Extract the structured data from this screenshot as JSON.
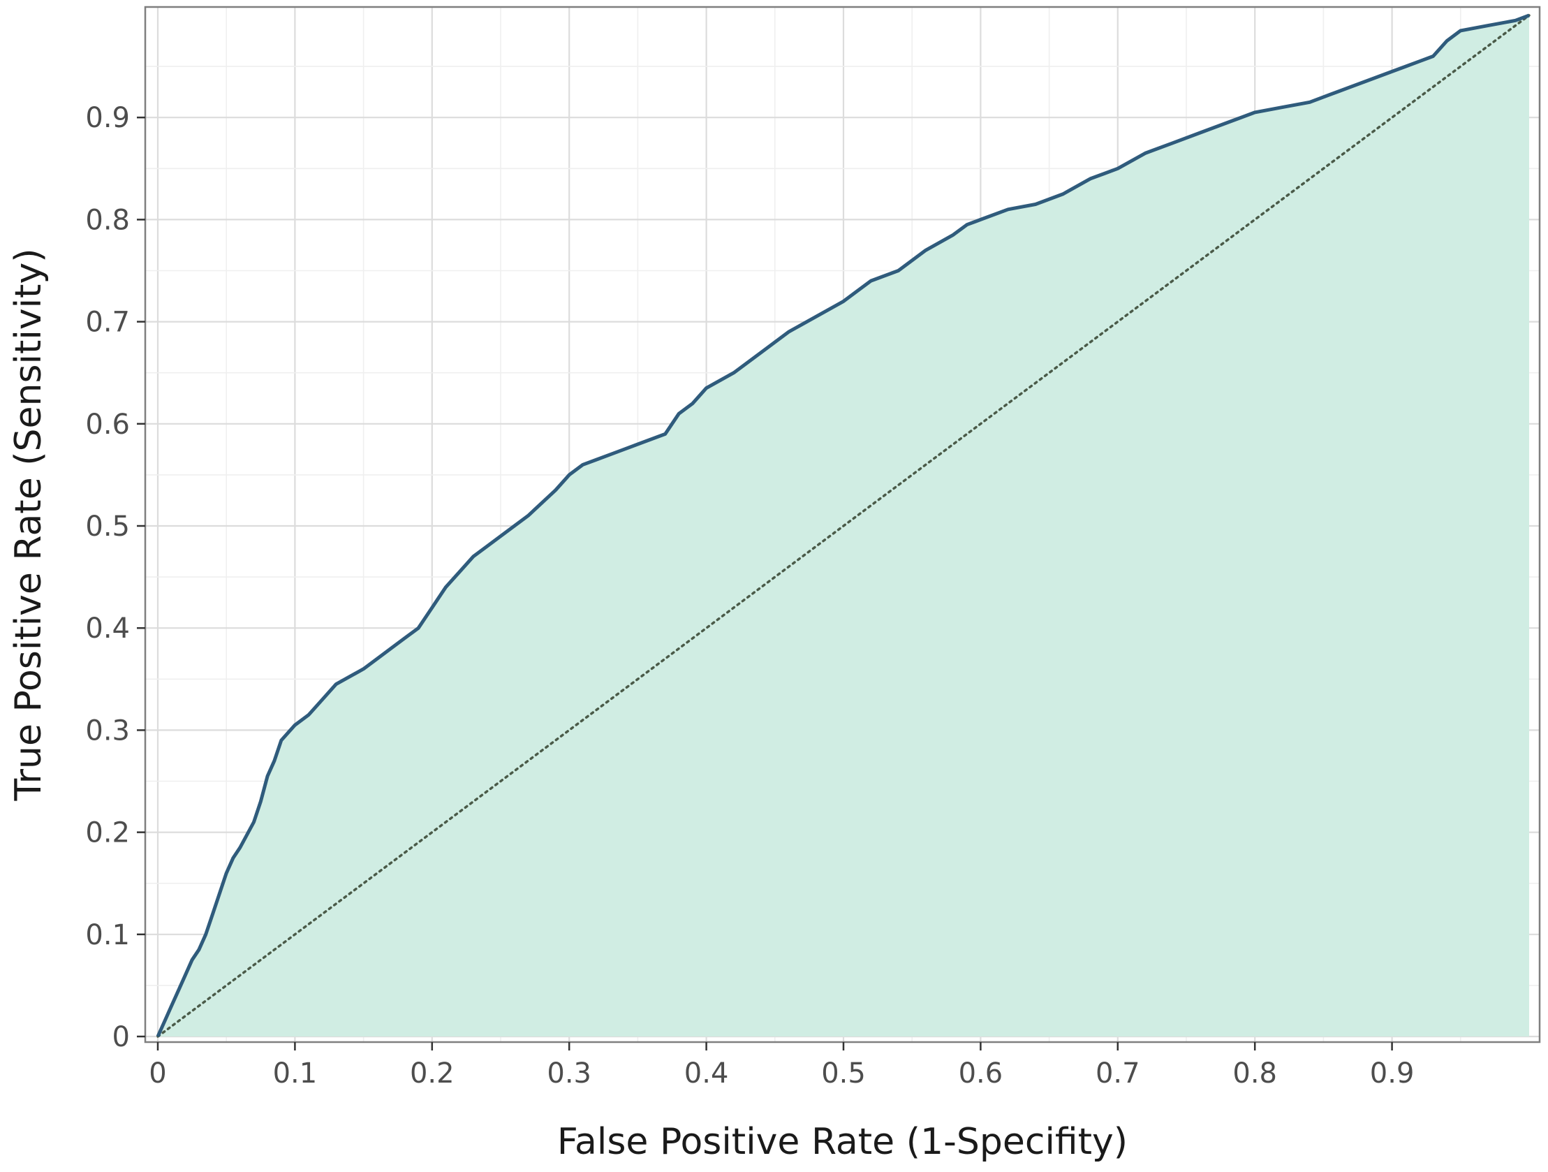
{
  "chart_data": {
    "type": "area",
    "title": "",
    "xlabel": "False Positive Rate (1-Specifity)",
    "ylabel": "True Positive Rate (Sensitivity)",
    "xlim": [
      0,
      1
    ],
    "ylim": [
      0,
      1
    ],
    "x_ticks": [
      0,
      0.1,
      0.2,
      0.3,
      0.4,
      0.5,
      0.6,
      0.7,
      0.8,
      0.9
    ],
    "x_tick_labels": [
      "0",
      "0.1",
      "0.2",
      "0.3",
      "0.4",
      "0.5",
      "0.6",
      "0.7",
      "0.8",
      "0.9"
    ],
    "y_ticks": [
      0,
      0.1,
      0.2,
      0.3,
      0.4,
      0.5,
      0.6,
      0.7,
      0.8,
      0.9
    ],
    "y_tick_labels": [
      "0",
      "0.1",
      "0.2",
      "0.3",
      "0.4",
      "0.5",
      "0.6",
      "0.7",
      "0.8",
      "0.9"
    ],
    "grid": true,
    "legend": "none",
    "colors": {
      "area_fill": "#d0ede3",
      "curve_line": "#2f5b7c",
      "diagonal_line": "#4a5a48",
      "grid_major": "#dcdcdc",
      "grid_minor": "#efefef",
      "panel_border": "#7f7f7f"
    },
    "series": [
      {
        "x": [
          0,
          0.005,
          0.01,
          0.015,
          0.02,
          0.025,
          0.03,
          0.035,
          0.04,
          0.045,
          0.05,
          0.055,
          0.06,
          0.07,
          0.075,
          0.08,
          0.085,
          0.09,
          0.1,
          0.11,
          0.12,
          0.13,
          0.15,
          0.16,
          0.17,
          0.18,
          0.19,
          0.2,
          0.21,
          0.22,
          0.23,
          0.24,
          0.25,
          0.27,
          0.29,
          0.3,
          0.31,
          0.32,
          0.33,
          0.35,
          0.37,
          0.38,
          0.39,
          0.4,
          0.42,
          0.44,
          0.46,
          0.48,
          0.5,
          0.51,
          0.52,
          0.54,
          0.56,
          0.58,
          0.59,
          0.6,
          0.62,
          0.64,
          0.66,
          0.68,
          0.69,
          0.7,
          0.72,
          0.74,
          0.76,
          0.78,
          0.8,
          0.82,
          0.84,
          0.86,
          0.88,
          0.9,
          0.91,
          0.93,
          0.94,
          0.95,
          0.97,
          0.99,
          1.0
        ],
        "y": [
          0,
          0.015,
          0.03,
          0.045,
          0.06,
          0.075,
          0.085,
          0.1,
          0.12,
          0.14,
          0.16,
          0.175,
          0.185,
          0.21,
          0.23,
          0.255,
          0.27,
          0.29,
          0.305,
          0.315,
          0.33,
          0.345,
          0.36,
          0.37,
          0.38,
          0.39,
          0.4,
          0.42,
          0.44,
          0.455,
          0.47,
          0.48,
          0.49,
          0.51,
          0.535,
          0.55,
          0.56,
          0.565,
          0.57,
          0.58,
          0.59,
          0.61,
          0.62,
          0.635,
          0.65,
          0.67,
          0.69,
          0.705,
          0.72,
          0.73,
          0.74,
          0.75,
          0.77,
          0.785,
          0.795,
          0.8,
          0.81,
          0.815,
          0.825,
          0.84,
          0.845,
          0.85,
          0.865,
          0.875,
          0.885,
          0.895,
          0.905,
          0.91,
          0.915,
          0.925,
          0.935,
          0.945,
          0.95,
          0.96,
          0.975,
          0.985,
          0.99,
          0.995,
          1.0
        ]
      }
    ],
    "reference_line": {
      "x": [
        0,
        1
      ],
      "y": [
        0,
        1
      ],
      "style": "dotted"
    }
  }
}
